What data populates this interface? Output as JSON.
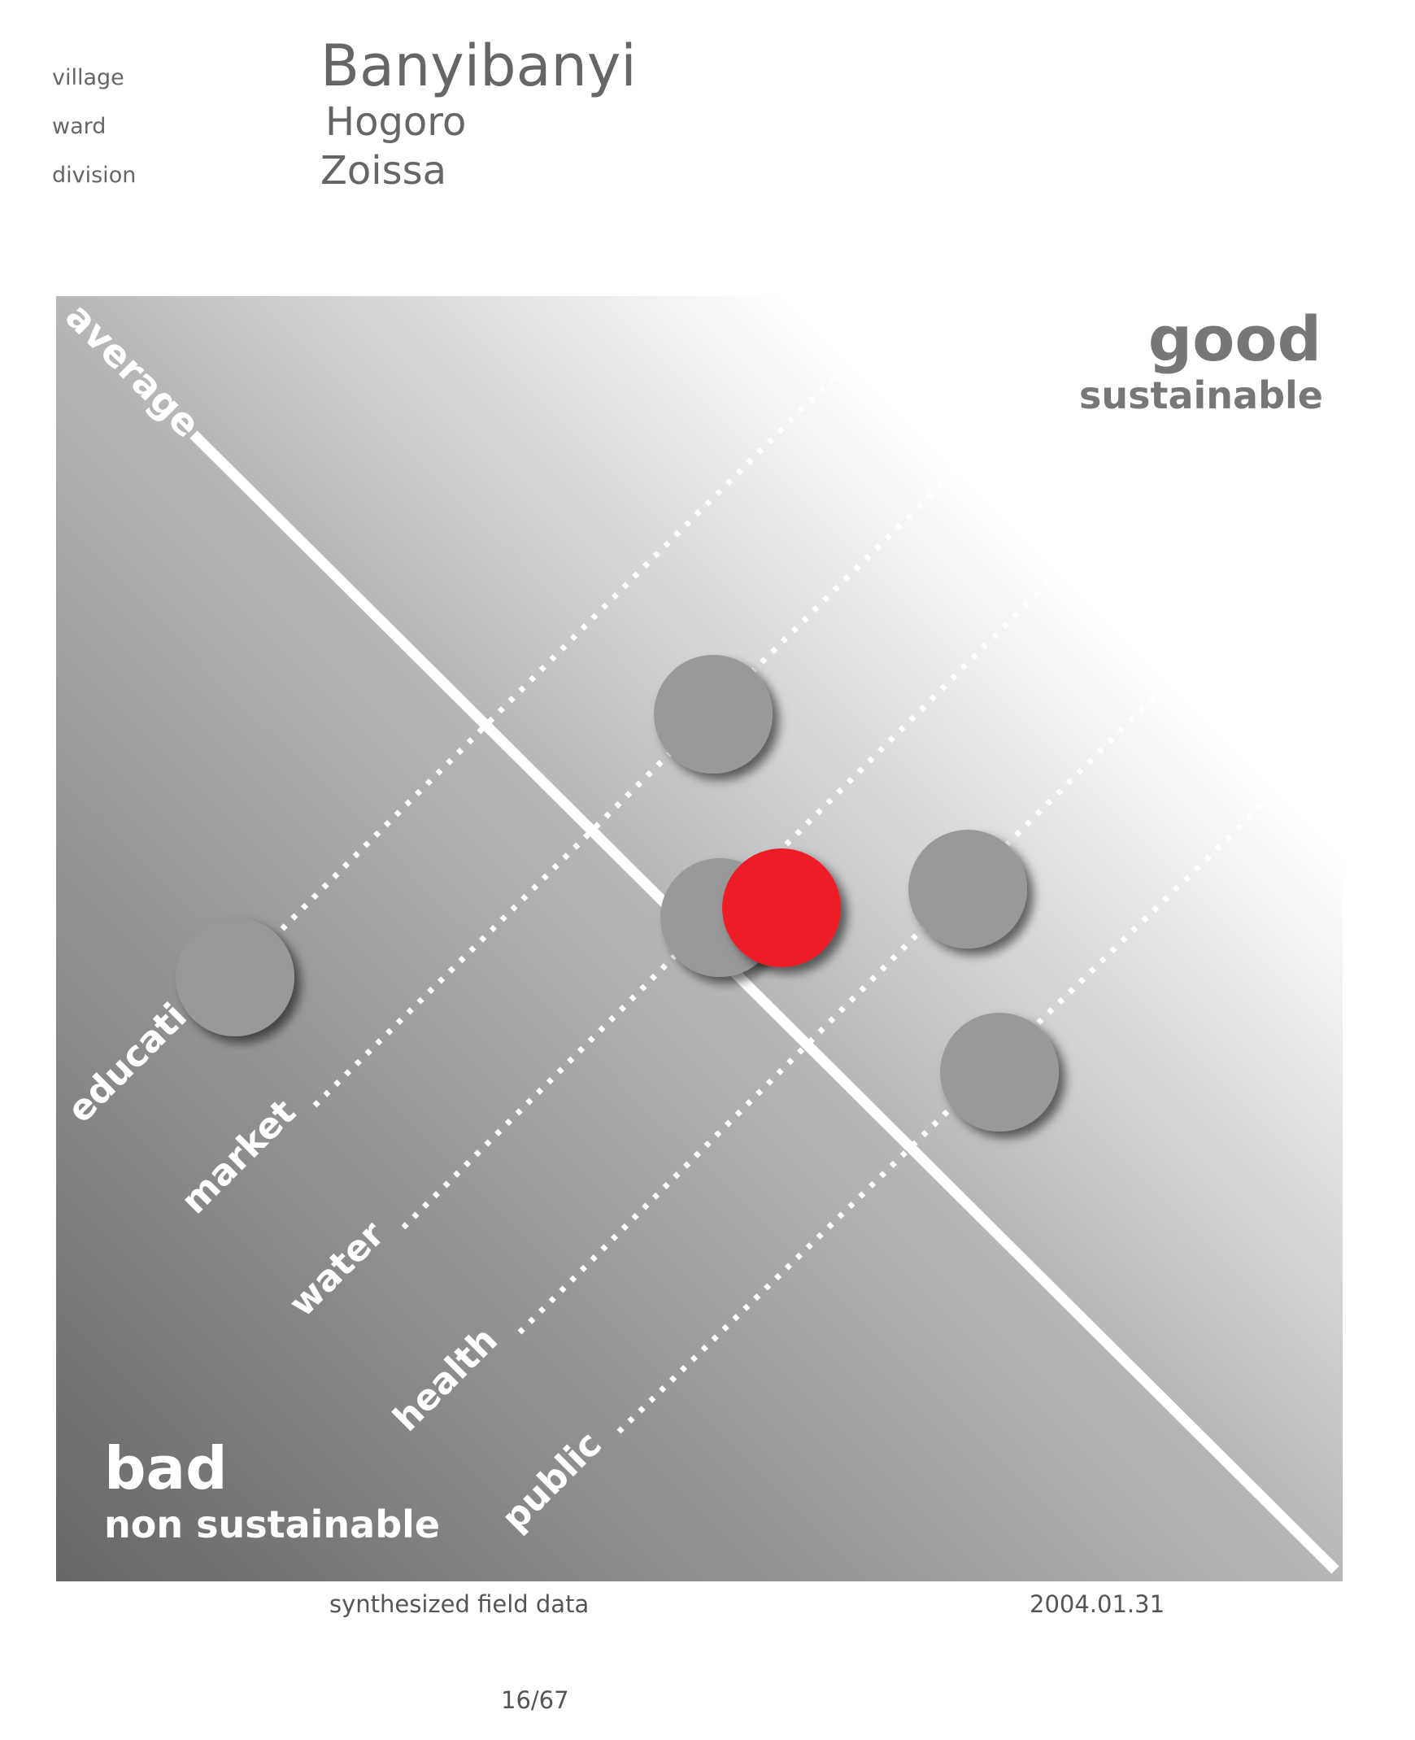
{
  "header": {
    "labels": {
      "village": "village",
      "ward": "ward",
      "division": "division"
    },
    "values": {
      "village": "Banyibanyi",
      "ward": "Hogoro",
      "division": "Zoissa"
    }
  },
  "chart_data": {
    "type": "scatter",
    "reference_line_label": "average",
    "good_label": "good",
    "good_sublabel": "sustainable",
    "bad_label": "bad",
    "bad_sublabel": "non sustainable",
    "categories": [
      "educati",
      "market",
      "water",
      "health",
      "public"
    ],
    "points": [
      {
        "color": "#999999"
      },
      {
        "color": "#999999"
      },
      {
        "color": "#999999"
      },
      {
        "color": "#999999"
      },
      {
        "color": "#999999"
      },
      {
        "color": "#ee1c25",
        "highlighted": true
      }
    ],
    "colors": {
      "gradient_dark": "#666666",
      "gradient_light": "#ffffff",
      "point": "#999999",
      "highlight": "#ee1c25"
    }
  },
  "footer": {
    "source": "synthesized field data",
    "date": "2004.01.31",
    "page": "16/67"
  }
}
